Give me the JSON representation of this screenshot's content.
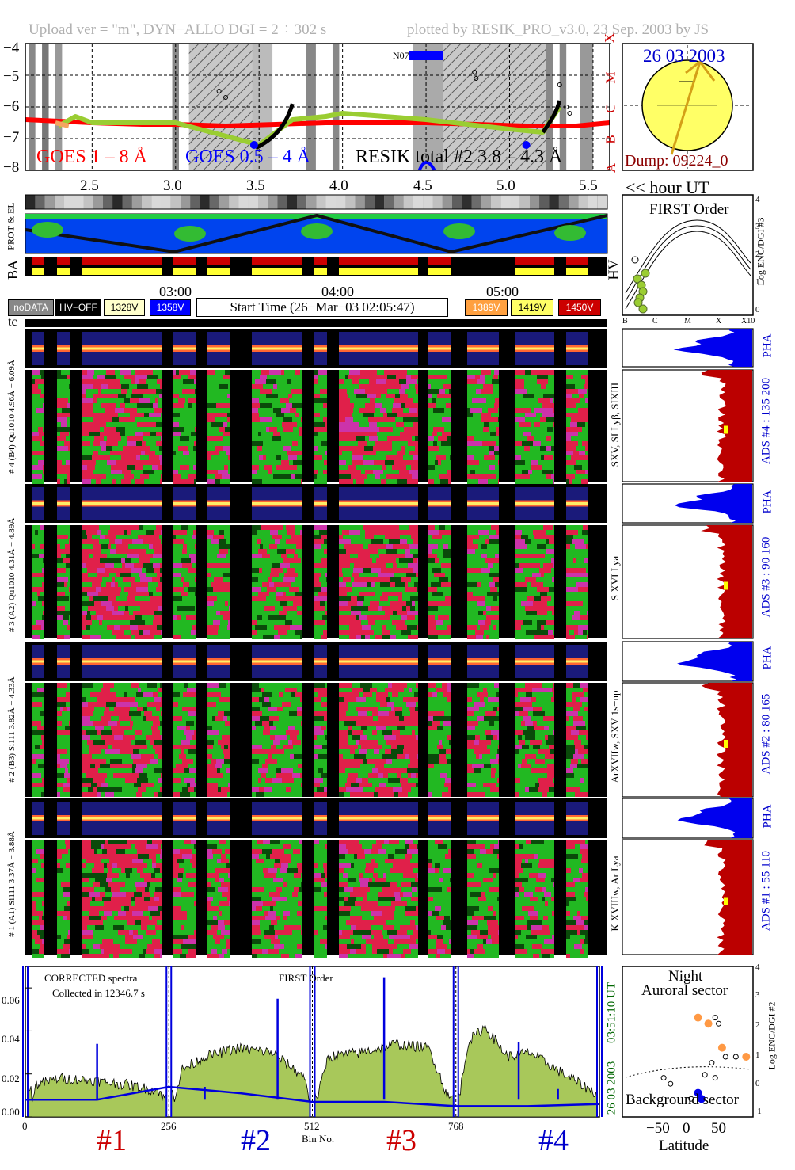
{
  "header": {
    "upload": "Upload ver = \"m\", DYN−ALLO DGI =   2 ÷ 302 s",
    "plotted": "plotted by RESIK_PRO_v3.0, 23 Sep. 2003 by JS"
  },
  "goes_panel": {
    "y_ticks": [
      "−4",
      "−5",
      "−6",
      "−7",
      "−8"
    ],
    "x_ticks": [
      "2.5",
      "3.0",
      "3.5",
      "4.0",
      "4.5",
      "5.0",
      "5.5"
    ],
    "x_unit": "<< hour UT",
    "class_letters": [
      "X",
      "M",
      "C",
      "B",
      "A"
    ],
    "noaa_label": "N07",
    "legend_red": "GOES 1 – 8 Å",
    "legend_blue": "GOES 0.5 – 4 Å",
    "legend_black": "RESIK total #2  3.8 – 4.3 Å",
    "colors": {
      "goes_long": "#ff0000",
      "goes_short": "#0000ff",
      "resik": "#000000",
      "resik_green": "#9acd32",
      "resik_orange": "#f4a460",
      "saa": "#808080"
    }
  },
  "sun_panel": {
    "date": "26 03 2003",
    "dump": "Dump: 09224_0",
    "disk_color": "#ffff66"
  },
  "strips": {
    "prot_el": "PROT & EL",
    "ba": "BA",
    "hv": "HV"
  },
  "first_order": {
    "title": "FIRST Order",
    "ylabel": "Log ENC/DGI #3",
    "y_ticks": [
      "4",
      "3",
      "2",
      "1",
      "0"
    ],
    "x_ticks": [
      "B",
      "C",
      "M",
      "X",
      "X10"
    ]
  },
  "time_axis": {
    "ticks": [
      "03:00",
      "04:00",
      "05:00"
    ]
  },
  "key": {
    "nodata": "noDATA",
    "hv_off": "HV−OFF",
    "v1328": "1328V",
    "v1358": "1358V",
    "start_time": "Start Time (26−Mar−03 02:05:47)",
    "v1389": "1389V",
    "v1419": "1419V",
    "v1450": "1450V",
    "colors": {
      "v1328": "#ffffcc",
      "v1358": "#0000ff",
      "v1389": "#ffa040",
      "v1419": "#ffff66",
      "v1450": "#cc0000"
    }
  },
  "tc": "tc",
  "channels": [
    {
      "name": "ADS #4 :  135 200",
      "line": "SXV, SI Lyβ, SIXIII",
      "pha_axis": "# 4 (B4) Qu1010 4.96Å − 6.09Å",
      "pha": "PHA"
    },
    {
      "name": "ADS #3 :   90 160",
      "line": "S XVI Lya",
      "pha_axis": "# 3 (A2) Qu1010 4.31Å − 4.89Å",
      "pha": "PHA"
    },
    {
      "name": "ADS #2 :   80 165",
      "line": "ArXVIIw, SXV 1s−np",
      "pha_axis": "# 2 (B3) Si111 3.82Å − 4.33Å",
      "pha": "PHA"
    },
    {
      "name": "ADS #1 :   55 110",
      "line": "K XVIIIw, Ar Lya",
      "pha_axis": "# 1 (A1) Si111 3.37Å − 3.88Å",
      "pha": "PHA"
    }
  ],
  "spectrum": {
    "text1": "CORRECTED spectra",
    "text2": "Collected in 12346.7 s",
    "order": "FIRST Order",
    "side_time": "03:51:10 UT",
    "side_date": "26 03 2003",
    "y_ticks": [
      "0.06",
      "0.04",
      "0.02",
      "0.00"
    ],
    "x_ticks": [
      "0",
      "256",
      "512",
      "768"
    ],
    "x_label": "Bin No.",
    "ch_labels": [
      "#1",
      "#2",
      "#3",
      "#4"
    ],
    "ch_colors": [
      "#cc0000",
      "#0000cc",
      "#cc0000",
      "#0000cc"
    ],
    "fill_color": "#a8c85a",
    "line_color": "#0000dd"
  },
  "latitude_panel": {
    "title1": "Night",
    "title2": "Auroral sector",
    "bottom": "Background sector",
    "ylabel": "Log ENC/DGI #2",
    "y_ticks": [
      "4",
      "3",
      "2",
      "1",
      "0",
      "−1"
    ],
    "x_ticks": [
      "−50",
      "0",
      "50"
    ],
    "xlabel": "Latitude",
    "orange_points": [
      [
        20,
        2.3
      ],
      [
        35,
        2.1
      ],
      [
        55,
        1.3
      ],
      [
        90,
        1.0
      ]
    ],
    "open_points": [
      [
        45,
        2.3
      ],
      [
        50,
        2.1
      ],
      [
        60,
        1.0
      ],
      [
        75,
        1.0
      ],
      [
        40,
        0.8
      ],
      [
        30,
        0.4
      ],
      [
        45,
        0.3
      ],
      [
        20,
        -0.2
      ],
      [
        10,
        -0.4
      ],
      [
        -20,
        0.1
      ],
      [
        -30,
        0.3
      ]
    ],
    "blue_points": [
      [
        20,
        -0.2
      ],
      [
        25,
        -0.4
      ]
    ]
  },
  "chart_data": [
    {
      "type": "line",
      "title": "",
      "xlabel": "<< hour UT",
      "ylabel": "",
      "xlim": [
        2.1,
        5.6
      ],
      "ylim": [
        -8,
        -4
      ],
      "grid": true,
      "legend": "bottom",
      "series": [
        {
          "name": "GOES 1 – 8 Å",
          "x": [
            2.1,
            2.3,
            2.5,
            2.8,
            3.0,
            3.3,
            3.6,
            3.9,
            4.2,
            4.5,
            4.8,
            5.1,
            5.4,
            5.6
          ],
          "y": [
            -6.4,
            -6.45,
            -6.5,
            -6.55,
            -6.55,
            -6.6,
            -6.55,
            -6.5,
            -6.5,
            -6.5,
            -6.55,
            -6.6,
            -6.6,
            -6.5
          ]
        },
        {
          "name": "RESIK total #2  3.8 – 4.3 Å",
          "x": [
            2.3,
            2.4,
            2.5,
            3.0,
            3.5,
            3.7,
            3.9,
            4.0,
            4.5,
            5.0,
            5.2,
            5.3
          ],
          "y": [
            -6.6,
            -6.3,
            -6.5,
            -6.5,
            -7.2,
            -6.4,
            -6.3,
            -6.2,
            -6.4,
            -6.7,
            -6.8,
            -6.0
          ]
        }
      ]
    },
    {
      "type": "area",
      "title": "",
      "xlabel": "Bin No.",
      "ylabel": "",
      "xlim": [
        0,
        1024
      ],
      "ylim": [
        0,
        0.07
      ],
      "grid": false,
      "series": [
        {
          "name": "CORRECTED spectra",
          "x": [
            0,
            20,
            60,
            120,
            180,
            240,
            256,
            280,
            320,
            380,
            440,
            500,
            512,
            540,
            600,
            660,
            720,
            768,
            790,
            820,
            860,
            900,
            960,
            1024
          ],
          "y": [
            0.0,
            0.015,
            0.018,
            0.017,
            0.015,
            0.012,
            0.0,
            0.022,
            0.028,
            0.032,
            0.03,
            0.018,
            0.0,
            0.028,
            0.03,
            0.034,
            0.032,
            0.0,
            0.035,
            0.042,
            0.028,
            0.03,
            0.02,
            0.01
          ]
        },
        {
          "name": "background",
          "x": [
            0,
            128,
            256,
            384,
            512,
            640,
            768,
            896,
            1024
          ],
          "y": [
            0.008,
            0.008,
            0.014,
            0.011,
            0.007,
            0.007,
            0.005,
            0.005,
            0.006
          ]
        }
      ]
    }
  ]
}
